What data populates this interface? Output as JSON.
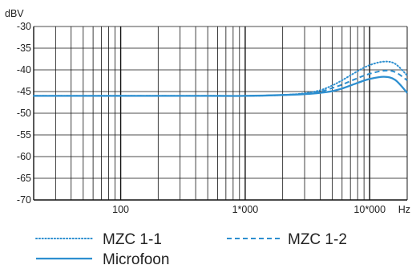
{
  "chart_data": {
    "type": "line",
    "title": "",
    "ylabel": "dBV",
    "xlabel": "Hz",
    "x_scale": "log",
    "xlim": [
      20,
      20000
    ],
    "ylim": [
      -70,
      -30
    ],
    "grid": true,
    "yticks": [
      -30,
      -35,
      -40,
      -45,
      -50,
      -55,
      -60,
      -65,
      -70
    ],
    "ytick_labels": [
      "-30",
      "-35",
      "-40",
      "-45",
      "-50",
      "-55",
      "-60",
      "-65",
      "-70"
    ],
    "xticks": [
      100,
      1000,
      10000
    ],
    "xtick_labels": [
      "100",
      "1*000",
      "10*000"
    ],
    "colors": {
      "line": "#2d8fd0",
      "grid": "#111111",
      "axis": "#111111"
    },
    "series": [
      {
        "name": "MZC 1-1",
        "style": "dotted",
        "points": [
          [
            20,
            -46
          ],
          [
            100,
            -46
          ],
          [
            500,
            -46
          ],
          [
            1000,
            -46
          ],
          [
            2000,
            -45.8
          ],
          [
            3000,
            -45.4
          ],
          [
            4000,
            -44.7
          ],
          [
            5000,
            -43.6
          ],
          [
            6000,
            -42.4
          ],
          [
            8000,
            -40.3
          ],
          [
            10000,
            -38.9
          ],
          [
            13000,
            -38.1
          ],
          [
            16000,
            -38.6
          ],
          [
            20000,
            -41.3
          ]
        ]
      },
      {
        "name": "MZC 1-2",
        "style": "dashed",
        "points": [
          [
            20,
            -46
          ],
          [
            100,
            -46
          ],
          [
            500,
            -46
          ],
          [
            1000,
            -46
          ],
          [
            2000,
            -45.8
          ],
          [
            3000,
            -45.5
          ],
          [
            4000,
            -45
          ],
          [
            5000,
            -44.2
          ],
          [
            6000,
            -43.4
          ],
          [
            8000,
            -41.9
          ],
          [
            10000,
            -40.9
          ],
          [
            13000,
            -40.2
          ],
          [
            16000,
            -40.5
          ],
          [
            20000,
            -42.4
          ]
        ]
      },
      {
        "name": "Microfoon",
        "style": "solid",
        "points": [
          [
            20,
            -46
          ],
          [
            100,
            -46
          ],
          [
            500,
            -46
          ],
          [
            1000,
            -46
          ],
          [
            2000,
            -45.8
          ],
          [
            3000,
            -45.6
          ],
          [
            4000,
            -45.3
          ],
          [
            5000,
            -44.9
          ],
          [
            6000,
            -44.3
          ],
          [
            8000,
            -43
          ],
          [
            10000,
            -42.1
          ],
          [
            13000,
            -41.6
          ],
          [
            16000,
            -42.3
          ],
          [
            20000,
            -45.3
          ]
        ]
      }
    ]
  }
}
